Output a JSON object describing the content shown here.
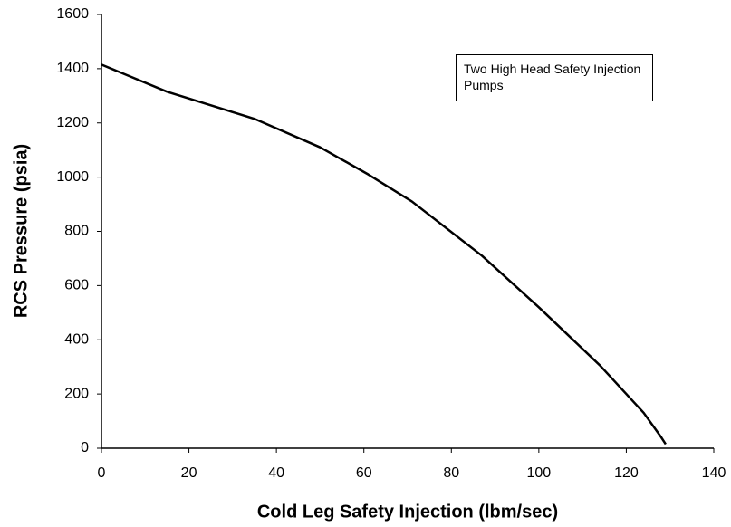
{
  "chart_data": {
    "type": "line",
    "xlabel": "Cold Leg Safety Injection (lbm/sec)",
    "ylabel": "RCS Pressure (psia)",
    "annotation": "Two High Head Safety Injection Pumps",
    "series": [
      {
        "color": "#000000",
        "x": [
          0,
          15,
          35,
          50,
          61,
          71,
          87,
          100,
          114,
          124,
          128,
          129
        ],
        "values": [
          1415,
          1315,
          1215,
          1110,
          1010,
          910,
          710,
          520,
          305,
          130,
          40,
          15
        ]
      }
    ],
    "xlim": [
      0,
      140
    ],
    "xticks": [
      0,
      20,
      40,
      60,
      80,
      100,
      120,
      140
    ],
    "ylim": [
      0,
      1600
    ],
    "yticks": [
      0,
      200,
      400,
      600,
      800,
      1000,
      1200,
      1400,
      1600
    ],
    "grid": false
  }
}
